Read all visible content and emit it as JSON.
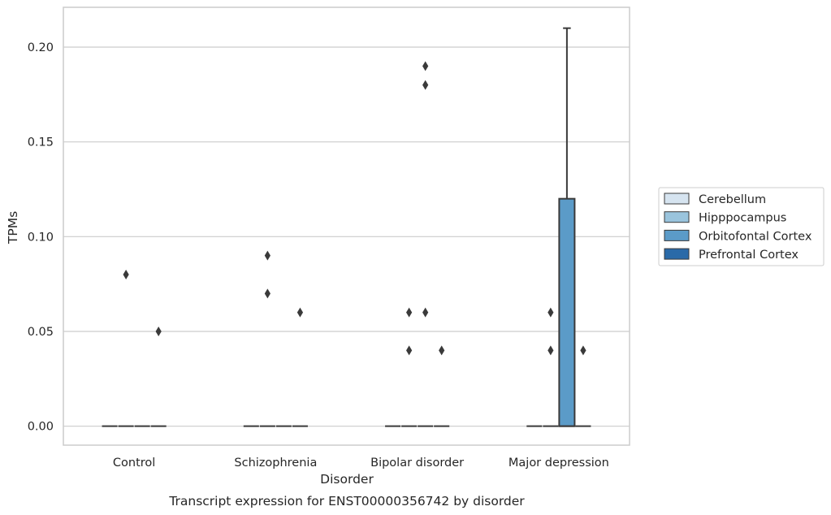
{
  "chart_data": {
    "type": "box",
    "xlabel": "Disorder",
    "ylabel": "TPMs",
    "caption": "Transcript expression for ENST00000356742 by disorder",
    "ylim": [
      -0.01,
      0.221
    ],
    "yticks": [
      0.0,
      0.05,
      0.1,
      0.15,
      0.2
    ],
    "ytick_labels": [
      "0.00",
      "0.05",
      "0.10",
      "0.15",
      "0.20"
    ],
    "grid": true,
    "legend_position": "center-right",
    "categories": [
      "Control",
      "Schizophrenia",
      "Bipolar disorder",
      "Major depression"
    ],
    "series": [
      {
        "name": "Cerebellum",
        "color": "#d6e4f0",
        "boxes": [
          {
            "category": "Control",
            "q1": 0,
            "median": 0,
            "q3": 0,
            "whisker_low": 0,
            "whisker_high": 0,
            "outliers": []
          },
          {
            "category": "Schizophrenia",
            "q1": 0,
            "median": 0,
            "q3": 0,
            "whisker_low": 0,
            "whisker_high": 0,
            "outliers": []
          },
          {
            "category": "Bipolar disorder",
            "q1": 0,
            "median": 0,
            "q3": 0,
            "whisker_low": 0,
            "whisker_high": 0,
            "outliers": []
          },
          {
            "category": "Major depression",
            "q1": 0,
            "median": 0,
            "q3": 0,
            "whisker_low": 0,
            "whisker_high": 0,
            "outliers": []
          }
        ]
      },
      {
        "name": "Hipppocampus",
        "color": "#9ac4dd",
        "boxes": [
          {
            "category": "Control",
            "q1": 0,
            "median": 0,
            "q3": 0,
            "whisker_low": 0,
            "whisker_high": 0,
            "outliers": [
              0.08
            ]
          },
          {
            "category": "Schizophrenia",
            "q1": 0,
            "median": 0,
            "q3": 0,
            "whisker_low": 0,
            "whisker_high": 0,
            "outliers": [
              0.07,
              0.09
            ]
          },
          {
            "category": "Bipolar disorder",
            "q1": 0,
            "median": 0,
            "q3": 0,
            "whisker_low": 0,
            "whisker_high": 0,
            "outliers": [
              0.04,
              0.06
            ]
          },
          {
            "category": "Major depression",
            "q1": 0,
            "median": 0,
            "q3": 0,
            "whisker_low": 0,
            "whisker_high": 0,
            "outliers": [
              0.04,
              0.06
            ]
          }
        ]
      },
      {
        "name": "Orbitofontal Cortex",
        "color": "#5b9bc8",
        "boxes": [
          {
            "category": "Control",
            "q1": 0,
            "median": 0,
            "q3": 0,
            "whisker_low": 0,
            "whisker_high": 0,
            "outliers": []
          },
          {
            "category": "Schizophrenia",
            "q1": 0,
            "median": 0,
            "q3": 0,
            "whisker_low": 0,
            "whisker_high": 0,
            "outliers": []
          },
          {
            "category": "Bipolar disorder",
            "q1": 0,
            "median": 0,
            "q3": 0,
            "whisker_low": 0,
            "whisker_high": 0,
            "outliers": [
              0.06,
              0.18,
              0.19
            ]
          },
          {
            "category": "Major depression",
            "q1": 0,
            "median": 0,
            "q3": 0.12,
            "whisker_low": 0,
            "whisker_high": 0.21,
            "outliers": []
          }
        ]
      },
      {
        "name": "Prefrontal Cortex",
        "color": "#2a6aa8",
        "boxes": [
          {
            "category": "Control",
            "q1": 0,
            "median": 0,
            "q3": 0,
            "whisker_low": 0,
            "whisker_high": 0,
            "outliers": [
              0.05
            ]
          },
          {
            "category": "Schizophrenia",
            "q1": 0,
            "median": 0,
            "q3": 0,
            "whisker_low": 0,
            "whisker_high": 0,
            "outliers": [
              0.06
            ]
          },
          {
            "category": "Bipolar disorder",
            "q1": 0,
            "median": 0,
            "q3": 0,
            "whisker_low": 0,
            "whisker_high": 0,
            "outliers": [
              0.04
            ]
          },
          {
            "category": "Major depression",
            "q1": 0,
            "median": 0,
            "q3": 0,
            "whisker_low": 0,
            "whisker_high": 0,
            "outliers": [
              0.04
            ]
          }
        ]
      }
    ]
  }
}
